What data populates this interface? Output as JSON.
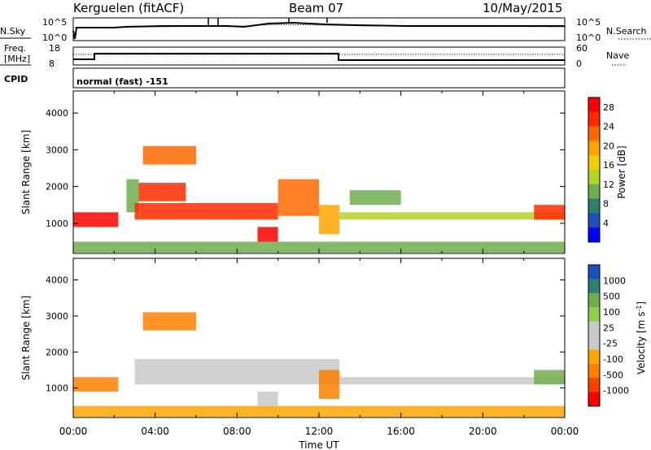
{
  "header": {
    "station": "Kerguelen (fitACF)",
    "beam": "Beam 07",
    "date": "10/May/2015"
  },
  "panel_labels": {
    "nsky": "N.Sky",
    "nsearch": "N.Search",
    "freq": "Freq.",
    "freq_unit": "[MHz]",
    "nave": "Nave",
    "cpid": "CPID",
    "cpid_value": "normal (fast) -151"
  },
  "nsky_ticks": [
    "10^5",
    "10^0"
  ],
  "nsearch_ticks": [
    "10^5",
    "10^0"
  ],
  "freq_ticks": [
    "18",
    "8"
  ],
  "nave_ticks": [
    "60",
    "0"
  ],
  "colors": {
    "power": [
      "#0000ff",
      "#1f4fbf",
      "#2f7f6f",
      "#6fae4f",
      "#b5d12b",
      "#f0d000",
      "#ffa500",
      "#ff6a00",
      "#ff2a00",
      "#ff0000"
    ],
    "velocity": [
      "#1f4fbf",
      "#2f7f6f",
      "#6fae4f",
      "#8fd04a",
      "#c8c8c8",
      "#c8c8c8",
      "#ffa500",
      "#ff7f00",
      "#ff4000",
      "#ff0000"
    ]
  },
  "chart_data": [
    {
      "type": "heatmap",
      "title": "",
      "xlabel": "",
      "ylabel": "Slant Range [km]",
      "ylim": [
        180,
        4600
      ],
      "xlim": [
        0,
        24
      ],
      "yticks": [
        1000,
        2000,
        3000,
        4000
      ],
      "colorbar": {
        "label": "Power [dB]",
        "ticks": [
          "4",
          "8",
          "12",
          "16",
          "20",
          "24",
          "28"
        ],
        "range": [
          0,
          30
        ]
      },
      "regions": [
        {
          "t0": 0.0,
          "t1": 2.2,
          "r0": 900,
          "r1": 1300,
          "v": 27
        },
        {
          "t0": 2.6,
          "t1": 3.2,
          "r0": 1300,
          "r1": 2200,
          "v": 10
        },
        {
          "t0": 3.0,
          "t1": 10.0,
          "r0": 1100,
          "r1": 1550,
          "v": 26
        },
        {
          "t0": 3.2,
          "t1": 5.5,
          "r0": 1600,
          "r1": 2100,
          "v": 24
        },
        {
          "t0": 3.4,
          "t1": 6.0,
          "r0": 2600,
          "r1": 3100,
          "v": 22
        },
        {
          "t0": 9.0,
          "t1": 10.0,
          "r0": 500,
          "r1": 900,
          "v": 27
        },
        {
          "t0": 10.0,
          "t1": 12.0,
          "r0": 1200,
          "r1": 2200,
          "v": 22
        },
        {
          "t0": 12.0,
          "t1": 13.0,
          "r0": 700,
          "r1": 1500,
          "v": 18
        },
        {
          "t0": 13.5,
          "t1": 16.0,
          "r0": 1500,
          "r1": 1900,
          "v": 9
        },
        {
          "t0": 13.0,
          "t1": 24.0,
          "r0": 1100,
          "r1": 1300,
          "v": 14
        },
        {
          "t0": 22.5,
          "t1": 24.0,
          "r0": 1100,
          "r1": 1500,
          "v": 26
        },
        {
          "t0": 0.0,
          "t1": 24.0,
          "r0": 200,
          "r1": 500,
          "v": 9
        }
      ]
    },
    {
      "type": "heatmap",
      "title": "",
      "xlabel": "Time UT",
      "ylabel": "Slant Range [km]",
      "ylim": [
        180,
        4600
      ],
      "xlim": [
        0,
        24
      ],
      "yticks": [
        1000,
        2000,
        3000,
        4000
      ],
      "xticks": [
        "00:00",
        "04:00",
        "08:00",
        "12:00",
        "16:00",
        "20:00",
        "00:00"
      ],
      "colorbar": {
        "label": "Velocity [m s^-1]",
        "ticks": [
          "1000",
          "500",
          "100",
          "25",
          "-25",
          "-100",
          "-500",
          "-1000"
        ]
      },
      "regions": [
        {
          "t0": 0.0,
          "t1": 2.2,
          "r0": 900,
          "r1": 1300,
          "v": -150
        },
        {
          "t0": 3.0,
          "t1": 13.0,
          "r0": 1100,
          "r1": 1800,
          "v": 0
        },
        {
          "t0": 3.4,
          "t1": 6.0,
          "r0": 2600,
          "r1": 3100,
          "v": -400
        },
        {
          "t0": 9.0,
          "t1": 10.0,
          "r0": 500,
          "r1": 900,
          "v": 0
        },
        {
          "t0": 12.0,
          "t1": 13.0,
          "r0": 700,
          "r1": 1500,
          "v": -200
        },
        {
          "t0": 13.0,
          "t1": 24.0,
          "r0": 1100,
          "r1": 1300,
          "v": 0
        },
        {
          "t0": 22.5,
          "t1": 24.0,
          "r0": 1100,
          "r1": 1500,
          "v": 150
        },
        {
          "t0": 0.0,
          "t1": 24.0,
          "r0": 200,
          "r1": 500,
          "v": -50
        }
      ]
    }
  ]
}
